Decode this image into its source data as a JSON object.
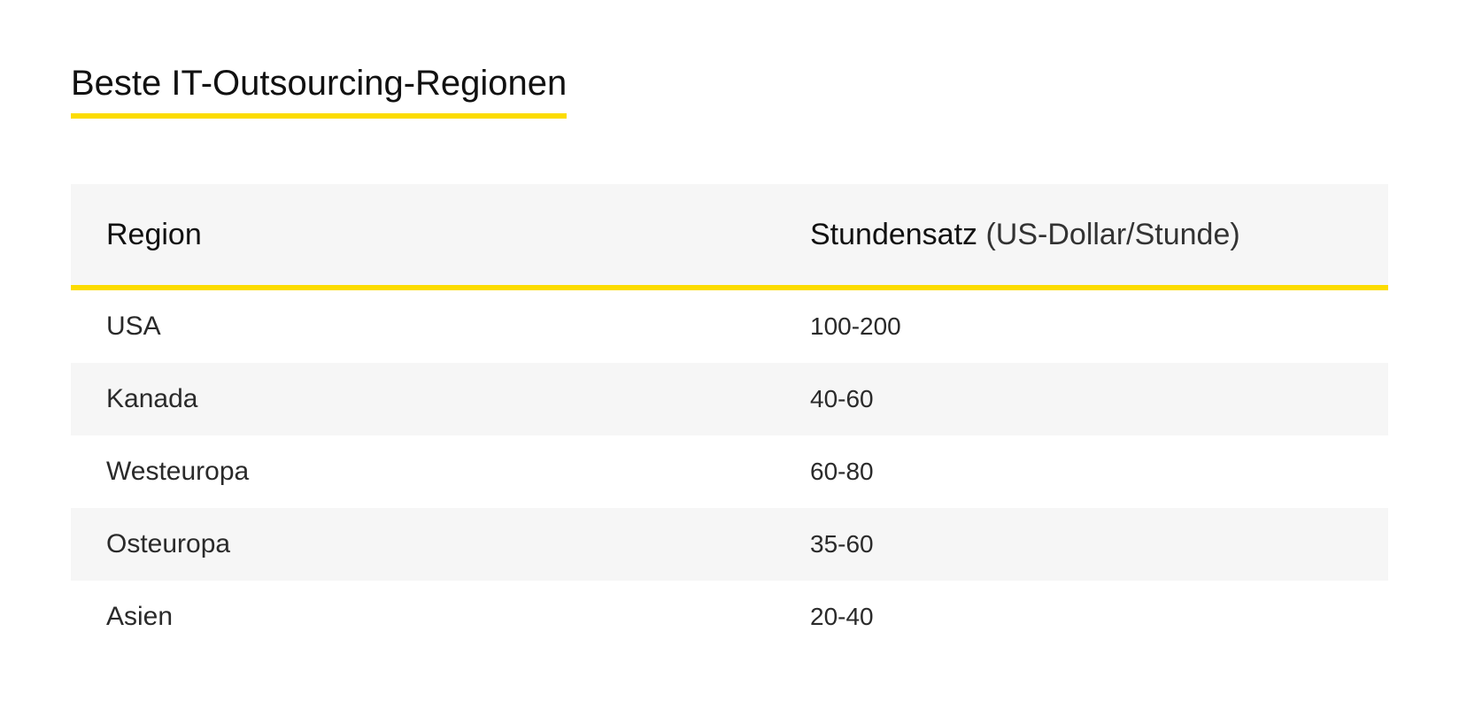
{
  "title": "Beste IT-Outsourcing-Regionen",
  "accent_color": "#FCDC00",
  "stripe_color": "#F6F6F6",
  "table": {
    "header": {
      "region": "Region",
      "rate_bold": "Stundensatz",
      "rate_unit": "(US-Dollar/Stunde)"
    },
    "rows": [
      {
        "region": "USA",
        "rate": "100-200"
      },
      {
        "region": "Kanada",
        "rate": "40-60"
      },
      {
        "region": "Westeuropa",
        "rate": "60-80"
      },
      {
        "region": "Osteuropa",
        "rate": "35-60"
      },
      {
        "region": "Asien",
        "rate": "20-40"
      }
    ]
  }
}
